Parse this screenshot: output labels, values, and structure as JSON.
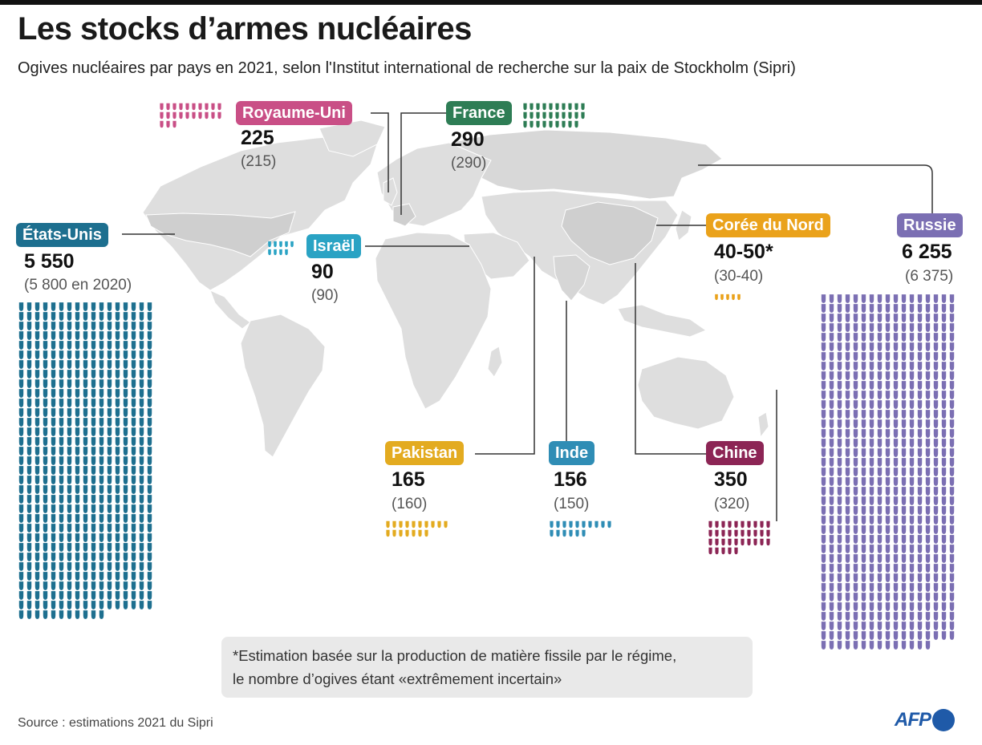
{
  "title": "Les stocks d’armes nucléaires",
  "subtitle": "Ogives nucléaires par pays en 2021, selon l'Institut international de recherche sur la paix de Stockholm (Sipri)",
  "countries": {
    "usa": {
      "name": "États-Unis",
      "count": "5 550",
      "previous": "(5 800 en 2020)",
      "color": "#1d6f8f",
      "icon_units": 5550
    },
    "uk": {
      "name": "Royaume-Uni",
      "count": "225",
      "previous": "(215)",
      "color": "#c94f86",
      "icon_units": 225
    },
    "france": {
      "name": "France",
      "count": "290",
      "previous": "(290)",
      "color": "#2e7d55",
      "icon_units": 290
    },
    "israel": {
      "name": "Israël",
      "count": "90",
      "previous": "(90)",
      "color": "#2aa3c4",
      "icon_units": 90
    },
    "nkorea": {
      "name": "Corée du Nord",
      "count": "40-50*",
      "previous": "(30-40)",
      "color": "#eaa21b",
      "icon_units": 45
    },
    "russia": {
      "name": "Russie",
      "count": "6 255",
      "previous": "(6 375)",
      "color": "#7b6fb3",
      "icon_units": 6255
    },
    "pakistan": {
      "name": "Pakistan",
      "count": "165",
      "previous": "(160)",
      "color": "#e3ab20",
      "icon_units": 165
    },
    "india": {
      "name": "Inde",
      "count": "156",
      "previous": "(150)",
      "color": "#2f8db5",
      "icon_units": 156
    },
    "china": {
      "name": "Chine",
      "count": "350",
      "previous": "(320)",
      "color": "#8c2555",
      "icon_units": 350
    }
  },
  "note": {
    "line1": "*Estimation basée sur la production de matière fissile par le régime,",
    "line2": "le nombre d’ogives étant «extrêmement incertain»"
  },
  "source": "Source : estimations 2021 du Sipri",
  "logo": "AFP"
}
